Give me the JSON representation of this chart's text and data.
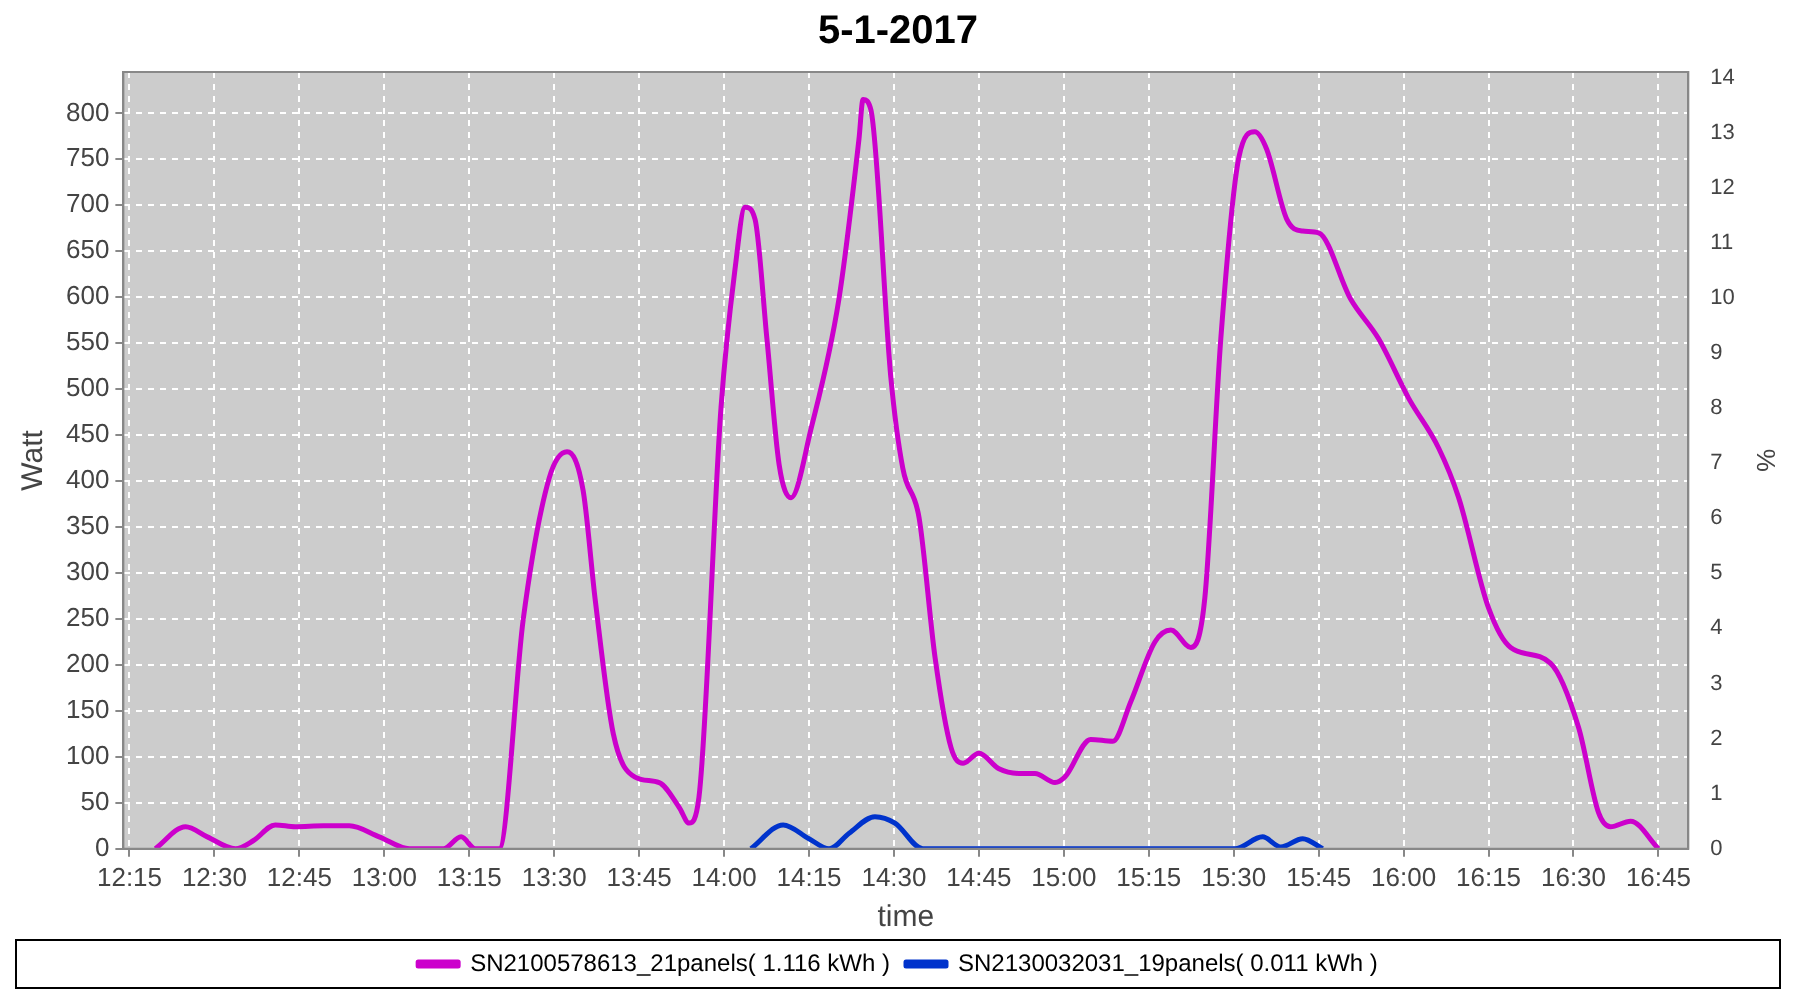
{
  "chart_data": {
    "type": "line",
    "title": "5-1-2017",
    "xlabel": "time",
    "ylabel": "Watt",
    "y2label": "%",
    "xlim": [
      12.232,
      16.838
    ],
    "xticks": [
      {
        "value": 12.25,
        "label": "12:15"
      },
      {
        "value": 12.5,
        "label": "12:30"
      },
      {
        "value": 12.75,
        "label": "12:45"
      },
      {
        "value": 13,
        "label": "13:00"
      },
      {
        "value": 13.25,
        "label": "13:15"
      },
      {
        "value": 13.5,
        "label": "13:30"
      },
      {
        "value": 13.75,
        "label": "13:45"
      },
      {
        "value": 14,
        "label": "14:00"
      },
      {
        "value": 14.25,
        "label": "14:15"
      },
      {
        "value": 14.5,
        "label": "14:30"
      },
      {
        "value": 14.75,
        "label": "14:45"
      },
      {
        "value": 15,
        "label": "15:00"
      },
      {
        "value": 15.25,
        "label": "15:15"
      },
      {
        "value": 15.5,
        "label": "15:30"
      },
      {
        "value": 15.75,
        "label": "15:45"
      },
      {
        "value": 16,
        "label": "16:00"
      },
      {
        "value": 16.25,
        "label": "16:15"
      },
      {
        "value": 16.5,
        "label": "16:30"
      },
      {
        "value": 16.75,
        "label": "16:45"
      }
    ],
    "ylim": [
      0,
      845
    ],
    "yticks": [
      0,
      50,
      100,
      150,
      200,
      250,
      300,
      350,
      400,
      450,
      500,
      550,
      600,
      650,
      700,
      750,
      800
    ],
    "y2lim": [
      0,
      14.1
    ],
    "y2ticks": [
      0,
      1,
      2,
      3,
      4,
      5,
      6,
      7,
      8,
      9,
      10,
      11,
      12,
      13,
      14
    ],
    "grid": true,
    "legend": "bottom",
    "series": [
      {
        "name": "SN2100578613_21panels( 1.116 kWh )",
        "color": "#cc00cc",
        "x": [
          12.326,
          12.415,
          12.479,
          12.562,
          12.615,
          12.679,
          12.738,
          12.821,
          12.897,
          12.985,
          13.074,
          13.174,
          13.226,
          13.268,
          13.338,
          13.409,
          13.485,
          13.538,
          13.585,
          13.621,
          13.674,
          13.738,
          13.809,
          13.868,
          13.897,
          13.926,
          13.991,
          14.032,
          14.062,
          14.091,
          14.126,
          14.162,
          14.197,
          14.256,
          14.338,
          14.397,
          14.409,
          14.432,
          14.491,
          14.526,
          14.574,
          14.621,
          14.668,
          14.703,
          14.75,
          14.809,
          14.868,
          14.915,
          14.974,
          15.003,
          15.079,
          15.144,
          15.197,
          15.268,
          15.315,
          15.374,
          15.415,
          15.462,
          15.515,
          15.562,
          15.597,
          15.656,
          15.703,
          15.75,
          15.844,
          15.926,
          16.015,
          16.103,
          16.162,
          16.25,
          16.315,
          16.432,
          16.515,
          16.574,
          16.609,
          16.668,
          16.75
        ],
        "values": [
          0,
          24,
          13,
          0,
          9,
          26,
          24,
          25,
          25,
          13,
          0,
          0,
          13,
          0,
          0,
          250,
          403,
          432,
          390,
          270,
          125,
          78,
          72,
          45,
          28,
          56,
          480,
          630,
          698,
          685,
          555,
          418,
          382,
          457,
          598,
          772,
          815,
          804,
          512,
          414,
          360,
          208,
          110,
          93,
          104,
          87,
          82,
          82,
          72,
          78,
          119,
          117,
          160,
          225,
          238,
          219,
          273,
          555,
          752,
          780,
          761,
          685,
          672,
          670,
          598,
          555,
          490,
          436,
          382,
          262,
          219,
          202,
          132,
          39,
          24,
          30,
          0
        ]
      },
      {
        "name": "SN2130032031_19panels( 0.011 kWh )",
        "color": "#0033cc",
        "x": [
          14.079,
          14.174,
          14.25,
          14.309,
          14.368,
          14.444,
          14.503,
          14.585,
          15.503,
          15.585,
          15.638,
          15.703,
          15.762
        ],
        "values": [
          0,
          26,
          11,
          0,
          17,
          35,
          28,
          0,
          0,
          13,
          2,
          11,
          0
        ]
      }
    ]
  }
}
